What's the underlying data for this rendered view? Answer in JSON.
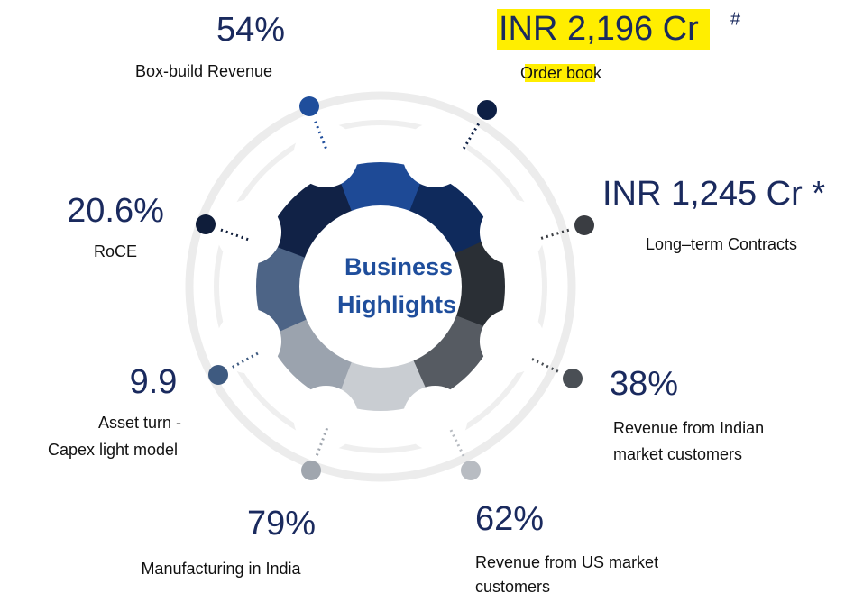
{
  "center": {
    "line1": "Business",
    "line2": "Highlights"
  },
  "highlights": [
    {
      "value": "54%",
      "label": [
        "Box-build Revenue"
      ]
    },
    {
      "value": "INR 2,196 Cr",
      "note": "#",
      "label": [
        "Order book"
      ]
    },
    {
      "value": "INR 1,245 Cr *",
      "label": [
        "Long–term Contracts"
      ]
    },
    {
      "value": "20.6%",
      "label": [
        "RoCE"
      ]
    },
    {
      "value": "9.9",
      "label": [
        "Asset turn -",
        "Capex light model"
      ]
    },
    {
      "value": "38%",
      "label": [
        "Revenue from Indian",
        "market customers"
      ]
    },
    {
      "value": "79%",
      "label": [
        "Manufacturing in India"
      ]
    },
    {
      "value": "62%",
      "label": [
        "Revenue from US market",
        "customers"
      ]
    }
  ]
}
